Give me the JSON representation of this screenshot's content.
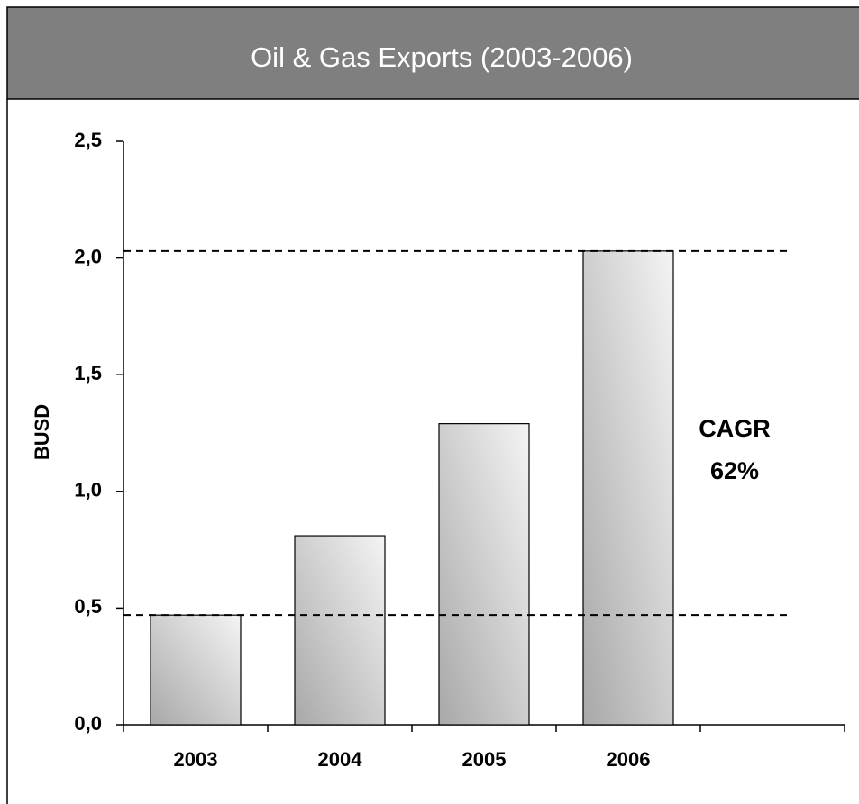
{
  "chart_data": {
    "type": "bar",
    "title": "Oil & Gas Exports (2003-2006)",
    "y_label": "BUSD",
    "categories": [
      "2003",
      "2004",
      "2005",
      "2006",
      null
    ],
    "values": [
      0.47,
      0.81,
      1.29,
      2.03,
      null
    ],
    "color": "#c8c8c8",
    "ylim": [
      0,
      2.5
    ],
    "yticks": [
      {
        "value": 0,
        "label": "0,0"
      },
      {
        "value": 0.5,
        "label": "0,5"
      },
      {
        "value": 1,
        "label": "1,0"
      },
      {
        "value": 1.5,
        "label": "1,5"
      },
      {
        "value": 2,
        "label": "2,0"
      },
      {
        "value": 2.5,
        "label": "2,5"
      }
    ],
    "annotation": [
      "CAGR",
      "62%"
    ]
  }
}
